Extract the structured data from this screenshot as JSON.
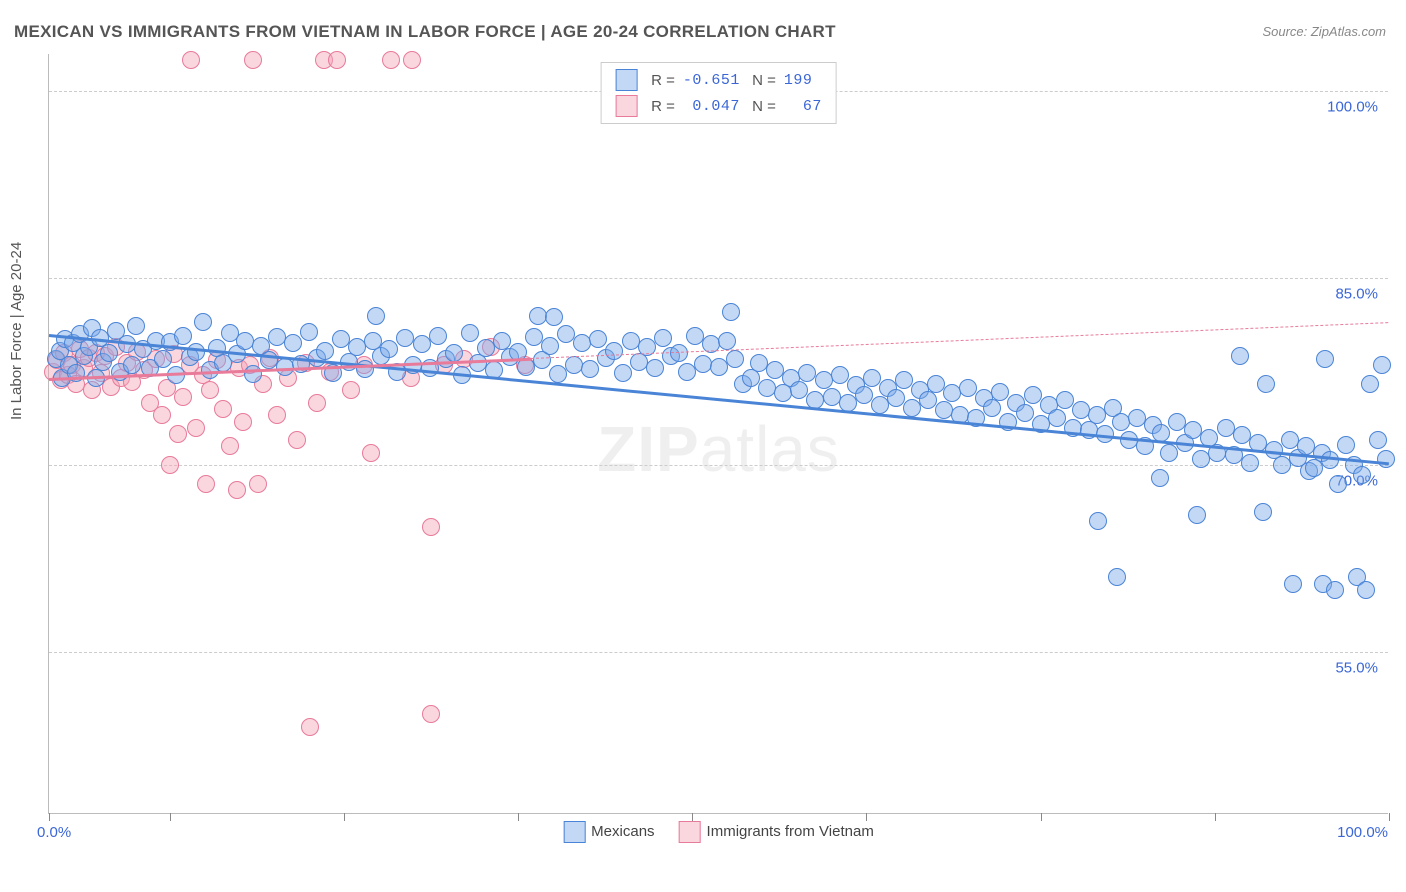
{
  "title": "MEXICAN VS IMMIGRANTS FROM VIETNAM IN LABOR FORCE | AGE 20-24 CORRELATION CHART",
  "source": "Source: ZipAtlas.com",
  "watermark": "ZIPatlas",
  "chart": {
    "type": "scatter",
    "background_color": "#ffffff",
    "grid_color": "#cccccc",
    "axis_color": "#bbbbbb",
    "axis_text_color": "#3a66d6",
    "text_color": "#555555",
    "ylabel": "In Labor Force | Age 20-24",
    "label_fontsize": 15,
    "title_fontsize": 17,
    "xlim": [
      0,
      100
    ],
    "ylim": [
      42,
      103
    ],
    "x_axis_labels": {
      "left": "0.0%",
      "right": "100.0%"
    },
    "x_tick_positions_pct": [
      0,
      9,
      22,
      35,
      48,
      61,
      74,
      87,
      100
    ],
    "y_gridlines": [
      {
        "value": 55.0,
        "label": "55.0%"
      },
      {
        "value": 70.0,
        "label": "70.0%"
      },
      {
        "value": 85.0,
        "label": "85.0%"
      },
      {
        "value": 100.0,
        "label": "100.0%"
      }
    ],
    "marker_radius": 8,
    "marker_stroke_width": 1,
    "trend_line_width": 3,
    "series": [
      {
        "name": "Mexicans",
        "fill": "rgba(122,169,232,0.45)",
        "stroke": "#4a84d6",
        "trend": {
          "x1": 0,
          "y1": 80.5,
          "x2": 100,
          "y2": 70.2,
          "solid_until_x": 100,
          "dash_after": false
        },
        "R": "-0.651",
        "N": "199",
        "points": [
          [
            0.5,
            78.5
          ],
          [
            0.8,
            79.2
          ],
          [
            1.0,
            77.0
          ],
          [
            1.2,
            80.1
          ],
          [
            1.5,
            78.0
          ],
          [
            1.8,
            79.8
          ],
          [
            2.0,
            77.4
          ],
          [
            2.3,
            80.5
          ],
          [
            2.6,
            78.8
          ],
          [
            3.0,
            79.5
          ],
          [
            3.2,
            81.0
          ],
          [
            3.5,
            77.0
          ],
          [
            3.8,
            80.2
          ],
          [
            4.0,
            78.3
          ],
          [
            4.5,
            79.0
          ],
          [
            5.0,
            80.8
          ],
          [
            5.3,
            77.5
          ],
          [
            5.8,
            79.7
          ],
          [
            6.2,
            78.0
          ],
          [
            6.5,
            81.2
          ],
          [
            7.0,
            79.3
          ],
          [
            7.5,
            77.8
          ],
          [
            8.0,
            80.0
          ],
          [
            8.5,
            78.5
          ],
          [
            9.0,
            79.9
          ],
          [
            9.5,
            77.2
          ],
          [
            10.0,
            80.4
          ],
          [
            10.5,
            78.7
          ],
          [
            11.0,
            79.1
          ],
          [
            11.5,
            81.5
          ],
          [
            12.0,
            77.6
          ],
          [
            12.5,
            79.4
          ],
          [
            13.0,
            78.2
          ],
          [
            13.5,
            80.6
          ],
          [
            14.0,
            78.9
          ],
          [
            14.6,
            80.0
          ],
          [
            15.2,
            77.3
          ],
          [
            15.8,
            79.6
          ],
          [
            16.4,
            78.4
          ],
          [
            17.0,
            80.3
          ],
          [
            17.6,
            77.9
          ],
          [
            18.2,
            79.8
          ],
          [
            18.8,
            78.1
          ],
          [
            19.4,
            80.7
          ],
          [
            20.0,
            78.6
          ],
          [
            20.6,
            79.2
          ],
          [
            21.2,
            77.4
          ],
          [
            21.8,
            80.1
          ],
          [
            22.4,
            78.3
          ],
          [
            23.0,
            79.5
          ],
          [
            23.6,
            77.7
          ],
          [
            24.2,
            80.0
          ],
          [
            24.4,
            82.0
          ],
          [
            24.8,
            78.8
          ],
          [
            25.4,
            79.3
          ],
          [
            26.0,
            77.5
          ],
          [
            26.6,
            80.2
          ],
          [
            27.2,
            78.0
          ],
          [
            27.8,
            79.7
          ],
          [
            28.4,
            77.8
          ],
          [
            29.0,
            80.4
          ],
          [
            29.6,
            78.5
          ],
          [
            30.2,
            79.0
          ],
          [
            30.8,
            77.2
          ],
          [
            31.4,
            80.6
          ],
          [
            32.0,
            78.2
          ],
          [
            32.6,
            79.4
          ],
          [
            33.2,
            77.6
          ],
          [
            33.8,
            80.0
          ],
          [
            34.4,
            78.7
          ],
          [
            35.0,
            79.1
          ],
          [
            35.6,
            77.9
          ],
          [
            36.2,
            80.3
          ],
          [
            36.5,
            82.0
          ],
          [
            36.8,
            78.4
          ],
          [
            37.4,
            79.6
          ],
          [
            37.7,
            81.9
          ],
          [
            38.0,
            77.3
          ],
          [
            38.6,
            80.5
          ],
          [
            39.2,
            78.0
          ],
          [
            39.8,
            79.8
          ],
          [
            40.4,
            77.7
          ],
          [
            41.0,
            80.1
          ],
          [
            41.6,
            78.6
          ],
          [
            42.2,
            79.2
          ],
          [
            42.8,
            77.4
          ],
          [
            43.4,
            80.0
          ],
          [
            44.0,
            78.3
          ],
          [
            44.6,
            79.5
          ],
          [
            45.2,
            77.8
          ],
          [
            45.8,
            80.2
          ],
          [
            46.4,
            78.8
          ],
          [
            47.0,
            79.0
          ],
          [
            47.6,
            77.5
          ],
          [
            48.2,
            80.4
          ],
          [
            48.8,
            78.1
          ],
          [
            49.4,
            79.7
          ],
          [
            50.0,
            77.9
          ],
          [
            50.6,
            80.0
          ],
          [
            50.9,
            82.3
          ],
          [
            51.2,
            78.5
          ],
          [
            51.8,
            76.5
          ],
          [
            52.4,
            77.0
          ],
          [
            53.0,
            78.2
          ],
          [
            53.6,
            76.2
          ],
          [
            54.2,
            77.6
          ],
          [
            54.8,
            75.8
          ],
          [
            55.4,
            77.0
          ],
          [
            56.0,
            76.0
          ],
          [
            56.6,
            77.4
          ],
          [
            57.2,
            75.2
          ],
          [
            57.8,
            76.8
          ],
          [
            58.4,
            75.5
          ],
          [
            59.0,
            77.2
          ],
          [
            59.6,
            75.0
          ],
          [
            60.2,
            76.4
          ],
          [
            60.8,
            75.6
          ],
          [
            61.4,
            77.0
          ],
          [
            62.0,
            74.8
          ],
          [
            62.6,
            76.2
          ],
          [
            63.2,
            75.4
          ],
          [
            63.8,
            76.8
          ],
          [
            64.4,
            74.6
          ],
          [
            65.0,
            76.0
          ],
          [
            65.6,
            75.2
          ],
          [
            66.2,
            76.5
          ],
          [
            66.8,
            74.4
          ],
          [
            67.4,
            75.8
          ],
          [
            68.0,
            74.0
          ],
          [
            68.6,
            76.2
          ],
          [
            69.2,
            73.8
          ],
          [
            69.8,
            75.4
          ],
          [
            70.4,
            74.6
          ],
          [
            71.0,
            75.9
          ],
          [
            71.6,
            73.5
          ],
          [
            72.2,
            75.0
          ],
          [
            72.8,
            74.2
          ],
          [
            73.4,
            75.6
          ],
          [
            74.0,
            73.3
          ],
          [
            74.6,
            74.8
          ],
          [
            75.2,
            73.8
          ],
          [
            75.8,
            75.2
          ],
          [
            76.4,
            73.0
          ],
          [
            77.0,
            74.4
          ],
          [
            77.6,
            72.8
          ],
          [
            78.2,
            74.0
          ],
          [
            78.3,
            65.5
          ],
          [
            78.8,
            72.5
          ],
          [
            79.4,
            74.6
          ],
          [
            79.7,
            61.0
          ],
          [
            80.0,
            73.5
          ],
          [
            80.6,
            72.0
          ],
          [
            81.2,
            73.8
          ],
          [
            81.8,
            71.5
          ],
          [
            82.4,
            73.2
          ],
          [
            82.9,
            69.0
          ],
          [
            83.0,
            72.6
          ],
          [
            83.6,
            71.0
          ],
          [
            84.2,
            73.5
          ],
          [
            84.8,
            71.8
          ],
          [
            85.4,
            72.8
          ],
          [
            85.7,
            66.0
          ],
          [
            86.0,
            70.5
          ],
          [
            86.6,
            72.2
          ],
          [
            87.2,
            71.0
          ],
          [
            87.8,
            73.0
          ],
          [
            88.4,
            70.8
          ],
          [
            88.9,
            78.8
          ],
          [
            89.0,
            72.4
          ],
          [
            89.6,
            70.2
          ],
          [
            90.2,
            71.8
          ],
          [
            90.6,
            66.2
          ],
          [
            90.8,
            76.5
          ],
          [
            91.4,
            71.2
          ],
          [
            92.0,
            70.0
          ],
          [
            92.6,
            72.0
          ],
          [
            92.8,
            60.5
          ],
          [
            93.2,
            70.6
          ],
          [
            93.8,
            71.5
          ],
          [
            94.0,
            69.5
          ],
          [
            94.4,
            69.8
          ],
          [
            95.0,
            71.0
          ],
          [
            95.1,
            60.5
          ],
          [
            95.2,
            78.5
          ],
          [
            95.6,
            70.4
          ],
          [
            96.0,
            60.0
          ],
          [
            96.2,
            68.5
          ],
          [
            96.8,
            71.6
          ],
          [
            97.4,
            70.0
          ],
          [
            97.6,
            61.0
          ],
          [
            98.0,
            69.2
          ],
          [
            98.3,
            60.0
          ],
          [
            98.6,
            76.5
          ],
          [
            99.2,
            72.0
          ],
          [
            99.5,
            78.0
          ],
          [
            99.8,
            70.5
          ]
        ]
      },
      {
        "name": "Immigrants from Vietnam",
        "fill": "rgba(244,164,184,0.45)",
        "stroke": "#e87a9a",
        "trend": {
          "x1": 0,
          "y1": 77.0,
          "x2": 100,
          "y2": 81.5,
          "solid_until_x": 36,
          "dash_after": true
        },
        "R": "0.047",
        "N": "67",
        "points": [
          [
            0.3,
            77.5
          ],
          [
            0.6,
            78.4
          ],
          [
            0.9,
            76.8
          ],
          [
            1.1,
            79.0
          ],
          [
            1.4,
            77.2
          ],
          [
            1.7,
            78.0
          ],
          [
            2.0,
            76.5
          ],
          [
            2.3,
            79.3
          ],
          [
            2.6,
            77.8
          ],
          [
            3.0,
            78.6
          ],
          [
            3.2,
            76.0
          ],
          [
            3.5,
            79.0
          ],
          [
            3.9,
            77.4
          ],
          [
            4.2,
            78.8
          ],
          [
            4.6,
            76.3
          ],
          [
            5.0,
            79.5
          ],
          [
            5.4,
            77.0
          ],
          [
            5.8,
            78.2
          ],
          [
            6.2,
            76.7
          ],
          [
            6.6,
            79.1
          ],
          [
            7.1,
            77.6
          ],
          [
            7.5,
            75.0
          ],
          [
            8.0,
            78.5
          ],
          [
            8.4,
            74.0
          ],
          [
            8.8,
            76.2
          ],
          [
            9.0,
            70.0
          ],
          [
            9.3,
            78.9
          ],
          [
            9.6,
            72.5
          ],
          [
            10.0,
            75.5
          ],
          [
            10.5,
            78.0
          ],
          [
            10.6,
            102.5
          ],
          [
            11.0,
            73.0
          ],
          [
            11.5,
            77.2
          ],
          [
            11.7,
            68.5
          ],
          [
            12.0,
            76.0
          ],
          [
            12.5,
            78.4
          ],
          [
            13.0,
            74.5
          ],
          [
            13.5,
            71.5
          ],
          [
            14.0,
            68.0
          ],
          [
            14.2,
            77.8
          ],
          [
            14.5,
            73.5
          ],
          [
            15.0,
            78.0
          ],
          [
            15.2,
            102.5
          ],
          [
            15.6,
            68.5
          ],
          [
            16.0,
            76.5
          ],
          [
            16.5,
            78.6
          ],
          [
            17.0,
            74.0
          ],
          [
            17.8,
            77.0
          ],
          [
            18.5,
            72.0
          ],
          [
            19.2,
            78.2
          ],
          [
            19.5,
            49.0
          ],
          [
            20.0,
            75.0
          ],
          [
            20.5,
            102.5
          ],
          [
            21.0,
            77.5
          ],
          [
            21.5,
            102.5
          ],
          [
            22.5,
            76.0
          ],
          [
            23.5,
            78.0
          ],
          [
            24.0,
            71.0
          ],
          [
            25.5,
            102.5
          ],
          [
            27.0,
            77.0
          ],
          [
            27.1,
            102.5
          ],
          [
            28.5,
            50.0
          ],
          [
            28.5,
            65.0
          ],
          [
            29.5,
            78.0
          ],
          [
            31.0,
            78.5
          ],
          [
            33.0,
            79.5
          ],
          [
            35.5,
            78.0
          ]
        ]
      }
    ]
  }
}
